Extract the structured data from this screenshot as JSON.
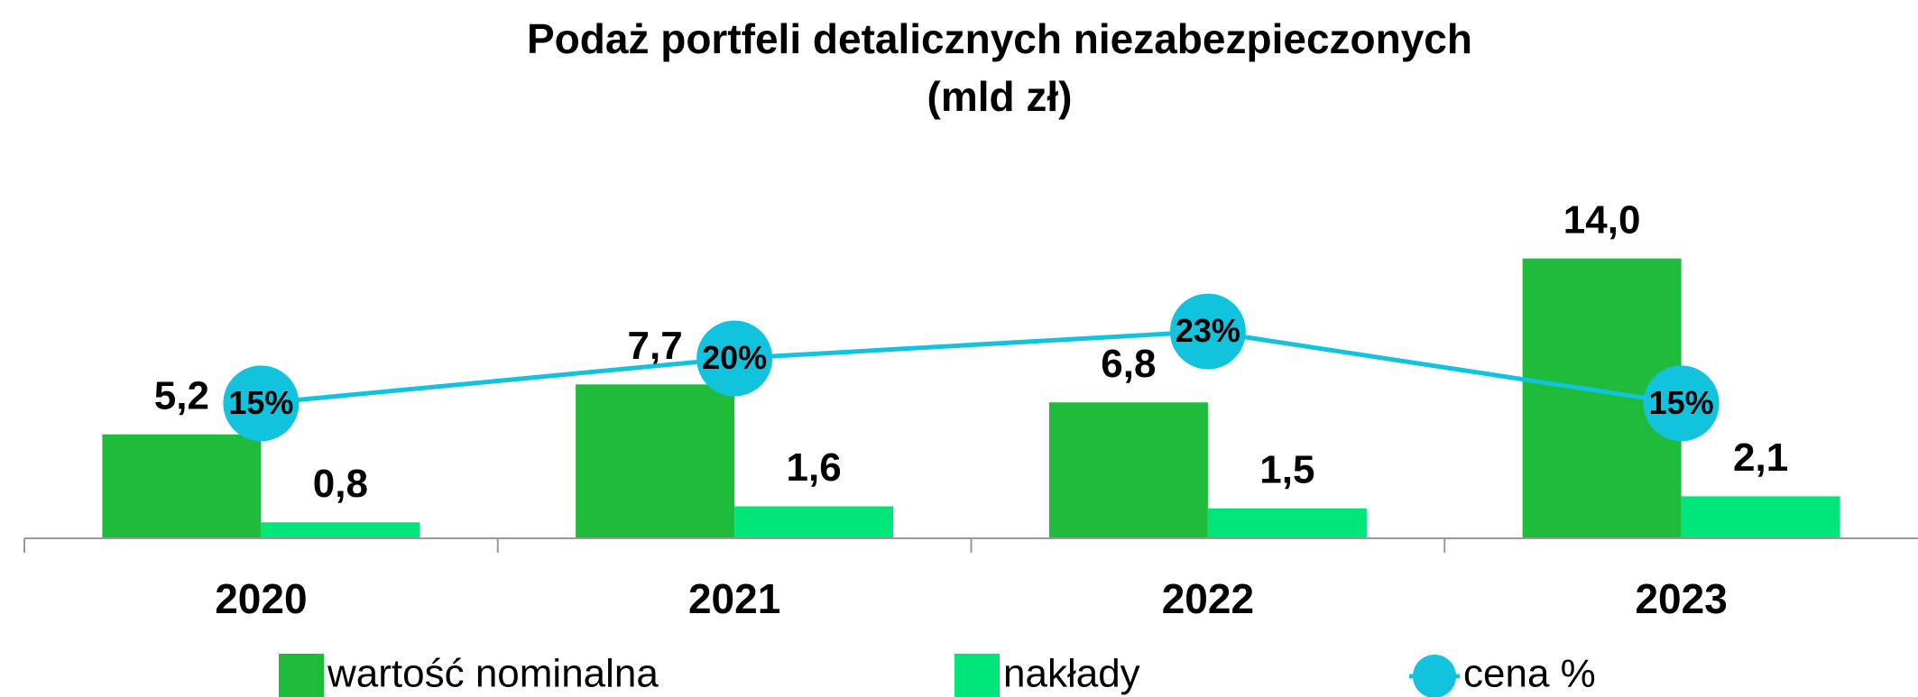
{
  "chart_data": {
    "type": "bar",
    "title": "Podaż portfeli detalicznych niezabezpieczonych",
    "subtitle": "(mld zł)",
    "categories": [
      "2020",
      "2021",
      "2022",
      "2023"
    ],
    "ylim": [
      0,
      18
    ],
    "y2lim": [
      0,
      40
    ],
    "series": [
      {
        "name": "wartość nominalna",
        "color": "#1fbb3a",
        "values": [
          5.2,
          7.7,
          6.8,
          14.0
        ],
        "value_labels": [
          "5,2",
          "7,7",
          "6,8",
          "14,0"
        ]
      },
      {
        "name": "nakłady",
        "color": "#00e57a",
        "values": [
          0.8,
          1.6,
          1.5,
          2.1
        ],
        "value_labels": [
          "0,8",
          "1,6",
          "1,5",
          "2,1"
        ]
      },
      {
        "name": "cena %",
        "type": "line",
        "axis": "y2",
        "color": "#12c3dd",
        "values": [
          15,
          20,
          23,
          15
        ],
        "value_labels": [
          "15%",
          "20%",
          "23%",
          "15%"
        ]
      }
    ]
  }
}
